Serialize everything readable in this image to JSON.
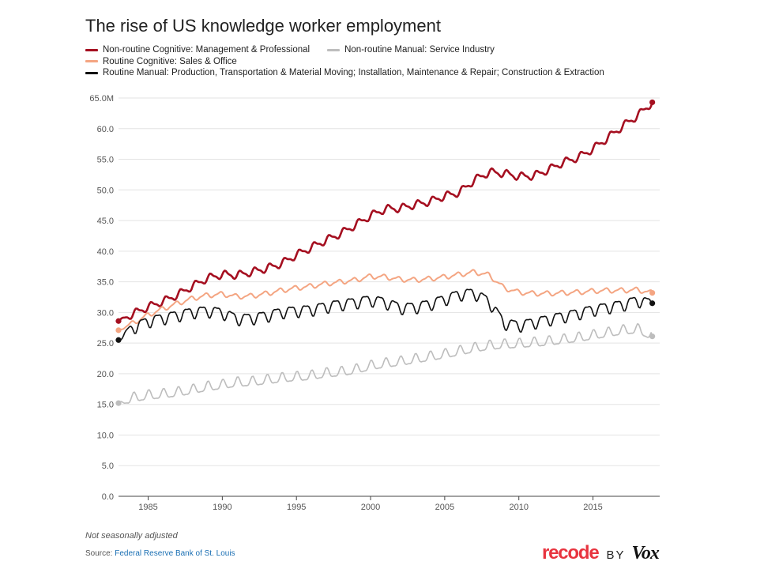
{
  "chart_data": {
    "type": "line",
    "title": "The rise of US knowledge worker employment",
    "xlabel": "",
    "ylabel": "",
    "ylim": [
      0,
      65
    ],
    "xlim": [
      1983,
      2019.5
    ],
    "y_ticks": [
      "65.0M",
      "60.0",
      "55.0",
      "50.0",
      "45.0",
      "40.0",
      "35.0",
      "30.0",
      "25.0",
      "20.0",
      "15.0",
      "10.0",
      "5.0",
      "0.0"
    ],
    "y_tick_values": [
      65,
      60,
      55,
      50,
      45,
      40,
      35,
      30,
      25,
      20,
      15,
      10,
      5,
      0
    ],
    "x_ticks": [
      "1985",
      "1990",
      "1995",
      "2000",
      "2005",
      "2010",
      "2015"
    ],
    "x_tick_values": [
      1985,
      1990,
      1995,
      2000,
      2005,
      2010,
      2015
    ],
    "grid": true,
    "legend_position": "top-left",
    "series": [
      {
        "name": "Non-routine Cognitive: Management & Professional",
        "color": "#a50f20",
        "width": 2.6,
        "points": [
          [
            1983,
            28.6
          ],
          [
            1984,
            29.8
          ],
          [
            1985,
            30.9
          ],
          [
            1986,
            31.8
          ],
          [
            1987,
            32.9
          ],
          [
            1988,
            34.3
          ],
          [
            1989,
            35.6
          ],
          [
            1990,
            36.2
          ],
          [
            1991,
            36.1
          ],
          [
            1992,
            36.6
          ],
          [
            1993,
            37.2
          ],
          [
            1994,
            38.0
          ],
          [
            1995,
            39.4
          ],
          [
            1996,
            40.6
          ],
          [
            1997,
            41.8
          ],
          [
            1998,
            42.9
          ],
          [
            1999,
            44.3
          ],
          [
            2000,
            45.8
          ],
          [
            2001,
            46.9
          ],
          [
            2002,
            47.0
          ],
          [
            2003,
            47.6
          ],
          [
            2004,
            48.1
          ],
          [
            2005,
            49.0
          ],
          [
            2006,
            49.6
          ],
          [
            2007,
            51.6
          ],
          [
            2008,
            52.9
          ],
          [
            2009,
            52.7
          ],
          [
            2010,
            52.2
          ],
          [
            2011,
            52.3
          ],
          [
            2012,
            53.3
          ],
          [
            2013,
            54.5
          ],
          [
            2014,
            55.3
          ],
          [
            2015,
            56.7
          ],
          [
            2016,
            58.5
          ],
          [
            2017,
            60.4
          ],
          [
            2018,
            62.1
          ],
          [
            2019,
            64.3
          ]
        ]
      },
      {
        "name": "Non-routine Manual: Service Industry",
        "color": "#bdbdbd",
        "width": 1.6,
        "points": [
          [
            1983,
            15.2
          ],
          [
            1984,
            16.0
          ],
          [
            1985,
            16.4
          ],
          [
            1986,
            16.6
          ],
          [
            1987,
            16.9
          ],
          [
            1988,
            17.3
          ],
          [
            1989,
            17.8
          ],
          [
            1990,
            18.1
          ],
          [
            1991,
            18.5
          ],
          [
            1992,
            18.6
          ],
          [
            1993,
            18.9
          ],
          [
            1994,
            19.2
          ],
          [
            1995,
            19.4
          ],
          [
            1996,
            19.6
          ],
          [
            1997,
            20.0
          ],
          [
            1998,
            20.2
          ],
          [
            1999,
            20.6
          ],
          [
            2000,
            21.2
          ],
          [
            2001,
            21.6
          ],
          [
            2002,
            21.9
          ],
          [
            2003,
            22.3
          ],
          [
            2004,
            22.7
          ],
          [
            2005,
            23.1
          ],
          [
            2006,
            23.6
          ],
          [
            2007,
            24.1
          ],
          [
            2008,
            24.5
          ],
          [
            2009,
            24.7
          ],
          [
            2010,
            24.8
          ],
          [
            2011,
            25.0
          ],
          [
            2012,
            25.2
          ],
          [
            2013,
            25.5
          ],
          [
            2014,
            25.8
          ],
          [
            2015,
            26.2
          ],
          [
            2016,
            26.6
          ],
          [
            2017,
            27.0
          ],
          [
            2018,
            27.2
          ],
          [
            2019,
            26.1
          ]
        ]
      },
      {
        "name": "Routine Cognitive: Sales & Office",
        "color": "#f4a582",
        "width": 2.0,
        "points": [
          [
            1983,
            27.1
          ],
          [
            1984,
            28.3
          ],
          [
            1985,
            29.6
          ],
          [
            1986,
            30.6
          ],
          [
            1987,
            31.5
          ],
          [
            1988,
            32.3
          ],
          [
            1989,
            32.8
          ],
          [
            1990,
            33.0
          ],
          [
            1991,
            32.6
          ],
          [
            1992,
            32.7
          ],
          [
            1993,
            33.1
          ],
          [
            1994,
            33.6
          ],
          [
            1995,
            34.0
          ],
          [
            1996,
            34.3
          ],
          [
            1997,
            34.7
          ],
          [
            1998,
            35.0
          ],
          [
            1999,
            35.3
          ],
          [
            2000,
            35.9
          ],
          [
            2001,
            35.8
          ],
          [
            2002,
            35.4
          ],
          [
            2003,
            35.3
          ],
          [
            2004,
            35.5
          ],
          [
            2005,
            35.8
          ],
          [
            2006,
            36.2
          ],
          [
            2007,
            36.6
          ],
          [
            2008,
            36.1
          ],
          [
            2009,
            34.0
          ],
          [
            2010,
            33.3
          ],
          [
            2011,
            33.1
          ],
          [
            2012,
            33.1
          ],
          [
            2013,
            33.2
          ],
          [
            2014,
            33.3
          ],
          [
            2015,
            33.5
          ],
          [
            2016,
            33.6
          ],
          [
            2017,
            33.6
          ],
          [
            2018,
            33.7
          ],
          [
            2019,
            33.2
          ]
        ]
      },
      {
        "name": "Routine Manual: Production, Transportation & Material Moving; Installation, Maintenance & Repair; Construction & Extraction",
        "color": "#111111",
        "width": 1.6,
        "points": [
          [
            1983,
            25.5
          ],
          [
            1984,
            27.6
          ],
          [
            1985,
            28.6
          ],
          [
            1986,
            29.1
          ],
          [
            1987,
            29.6
          ],
          [
            1988,
            30.1
          ],
          [
            1989,
            30.3
          ],
          [
            1990,
            30.0
          ],
          [
            1991,
            29.0
          ],
          [
            1992,
            29.1
          ],
          [
            1993,
            29.5
          ],
          [
            1994,
            30.1
          ],
          [
            1995,
            30.3
          ],
          [
            1996,
            30.5
          ],
          [
            1997,
            31.0
          ],
          [
            1998,
            31.4
          ],
          [
            1999,
            31.7
          ],
          [
            2000,
            32.1
          ],
          [
            2001,
            31.7
          ],
          [
            2002,
            30.8
          ],
          [
            2003,
            30.9
          ],
          [
            2004,
            31.4
          ],
          [
            2005,
            32.2
          ],
          [
            2006,
            33.0
          ],
          [
            2007,
            33.2
          ],
          [
            2008,
            31.8
          ],
          [
            2009,
            28.3
          ],
          [
            2010,
            27.9
          ],
          [
            2011,
            28.4
          ],
          [
            2012,
            28.9
          ],
          [
            2013,
            29.4
          ],
          [
            2014,
            29.9
          ],
          [
            2015,
            30.5
          ],
          [
            2016,
            30.9
          ],
          [
            2017,
            31.3
          ],
          [
            2018,
            32.0
          ],
          [
            2019,
            31.5
          ]
        ]
      }
    ],
    "note": "Not seasonally adjusted",
    "source_prefix": "Source: ",
    "source_link": "Federal Reserve Bank of St. Louis"
  },
  "brand": {
    "name": "recode",
    "by": "BY",
    "partner": "Vox",
    "accent_color": "#e8343f"
  }
}
